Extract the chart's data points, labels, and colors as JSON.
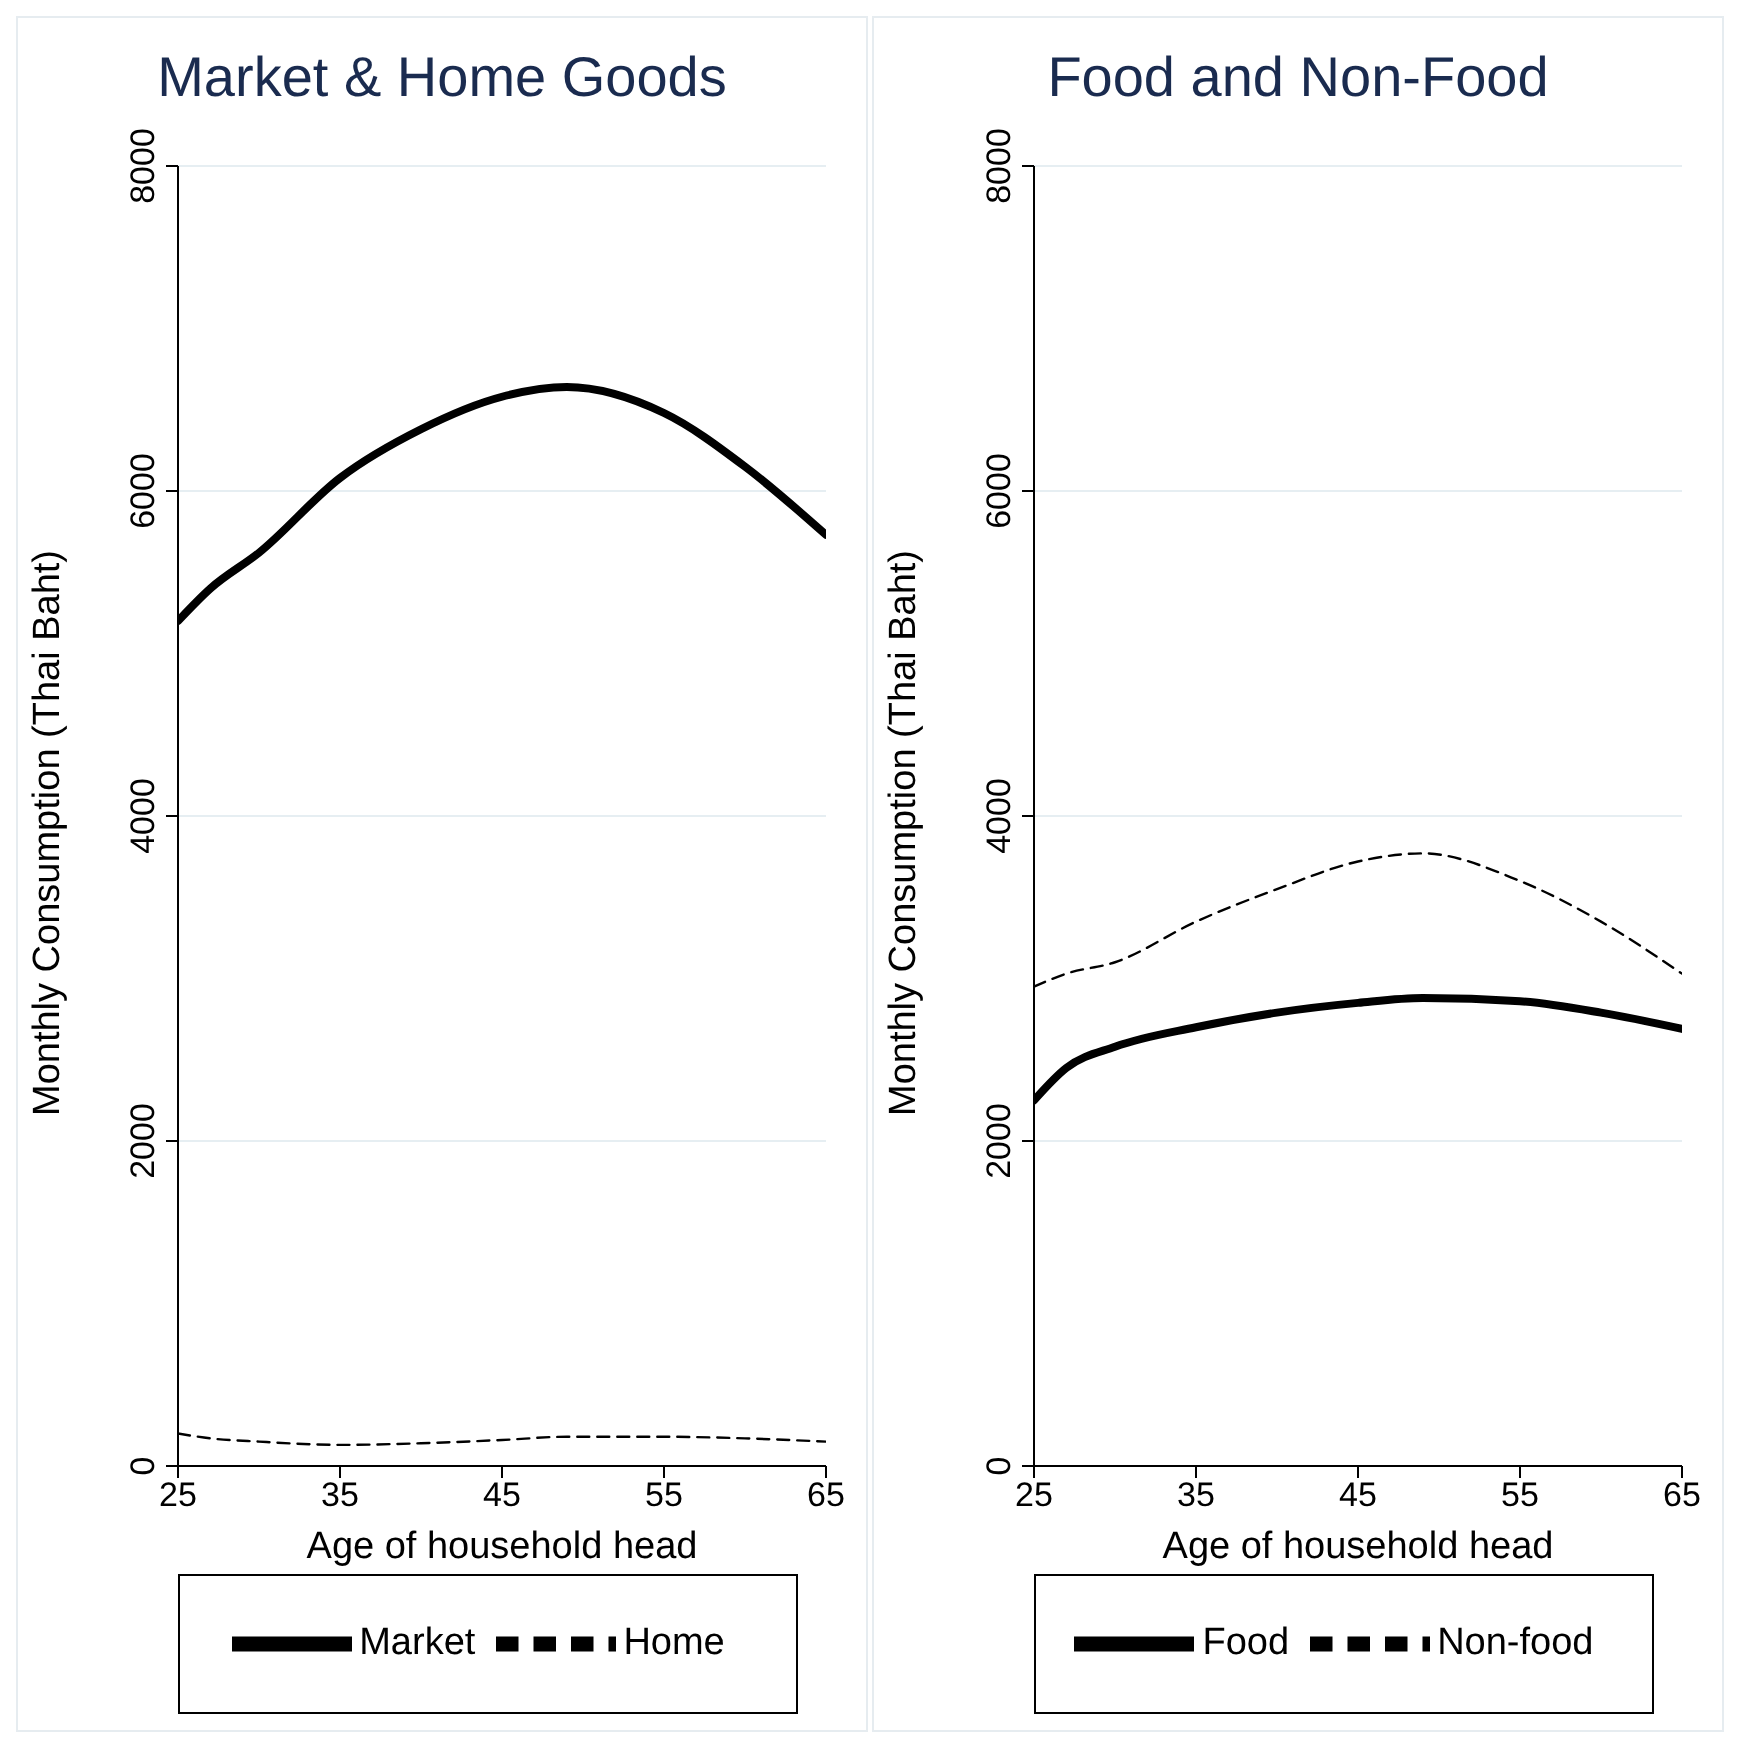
{
  "chart_data": [
    {
      "type": "line",
      "title": "Market & Home Goods",
      "xlabel": "Age of household head",
      "ylabel": "Monthly Consumption (Thai Baht)",
      "x": [
        25,
        27,
        30,
        35,
        40,
        45,
        49,
        55,
        60,
        65
      ],
      "series": [
        {
          "name": "Market",
          "color": "#000000",
          "line_style": "solid",
          "values": [
            5200,
            5400,
            5620,
            6080,
            6380,
            6580,
            6640,
            6480,
            6150,
            5730
          ]
        },
        {
          "name": "Home",
          "color": "#000000",
          "line_style": "dashed",
          "values": [
            200,
            170,
            150,
            130,
            140,
            160,
            180,
            180,
            170,
            150
          ]
        }
      ],
      "xlim": [
        25,
        65
      ],
      "xticks": [
        25,
        35,
        45,
        55,
        65
      ],
      "ylim": [
        0,
        8000
      ],
      "yticks": [
        0,
        2000,
        4000,
        6000,
        8000
      ],
      "grid": "y",
      "legend": "bottom",
      "marker": "none"
    },
    {
      "type": "line",
      "title": "Food and Non-Food",
      "xlabel": "Age of household head",
      "ylabel": "Monthly Consumption (Thai Baht)",
      "x": [
        25,
        27,
        30,
        35,
        40,
        45,
        49,
        55,
        60,
        65
      ],
      "series": [
        {
          "name": "Food",
          "color": "#000000",
          "line_style": "solid",
          "values": [
            2250,
            2450,
            2580,
            2700,
            2790,
            2850,
            2880,
            2860,
            2790,
            2690
          ]
        },
        {
          "name": "Non-food",
          "color": "#000000",
          "line_style": "dashed",
          "values": [
            2950,
            3030,
            3100,
            3350,
            3550,
            3720,
            3770,
            3600,
            3350,
            3030
          ]
        }
      ],
      "xlim": [
        25,
        65
      ],
      "xticks": [
        25,
        35,
        45,
        55,
        65
      ],
      "ylim": [
        0,
        8000
      ],
      "yticks": [
        0,
        2000,
        4000,
        6000,
        8000
      ],
      "grid": "y",
      "legend": "bottom",
      "marker": "none"
    }
  ]
}
